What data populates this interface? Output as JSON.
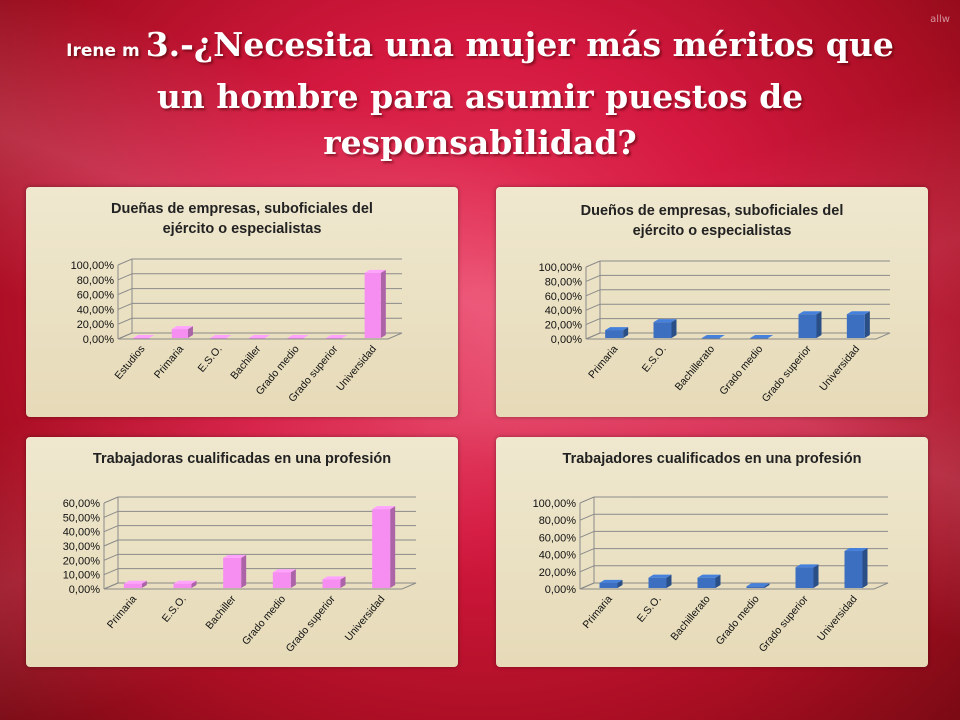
{
  "watermark": "allw",
  "header": {
    "author": "Irene m",
    "title": "3.-¿Necesita una mujer más méritos que un hombre para asumir puestos de responsabilidad?"
  },
  "chart_data": [
    {
      "type": "bar",
      "title": "Dueñas de empresas, suboficiales del ejército o especialistas",
      "title_lines": [
        "Dueñas de empresas, suboficiales del",
        "ejército o especialistas"
      ],
      "categories": [
        "Estudios",
        "Primaria",
        "E.S.O.",
        "Bachiller",
        "Grado medio",
        "Grado superior",
        "Universidad"
      ],
      "values": [
        0.0,
        12.0,
        0.0,
        0.0,
        0.0,
        0.0,
        88.0
      ],
      "ylim": [
        0,
        100
      ],
      "yticks": [
        "0,00%",
        "20,00%",
        "40,00%",
        "60,00%",
        "80,00%",
        "100,00%"
      ],
      "color": "#f58ef0",
      "grid": true,
      "legend": "none"
    },
    {
      "type": "bar",
      "title": "Dueños de empresas, suboficiales del ejército o especialistas",
      "title_lines": [
        "Dueños de empresas, suboficiales del",
        "ejército o especialistas"
      ],
      "categories": [
        "Primaria",
        "E.S.O.",
        "Bachillerato",
        "Grado medio",
        "Grado superior",
        "Universidad"
      ],
      "values": [
        11.0,
        22.0,
        0.0,
        0.0,
        33.0,
        33.0
      ],
      "ylim": [
        0,
        100
      ],
      "yticks": [
        "0,00%",
        "20,00%",
        "40,00%",
        "60,00%",
        "80,00%",
        "100,00%"
      ],
      "color": "#3c6fc0",
      "grid": true,
      "legend": "none"
    },
    {
      "type": "bar",
      "title": "Trabajadoras cualificadas en una profesión",
      "title_lines": [
        "Trabajadoras cualificadas en una profesión"
      ],
      "categories": [
        "Primaria",
        "E.S.O.",
        "Bachiller",
        "Grado medio",
        "Grado superior",
        "Universidad"
      ],
      "values": [
        3.0,
        3.0,
        21.0,
        11.0,
        6.0,
        55.0
      ],
      "ylim": [
        0,
        60
      ],
      "yticks": [
        "0,00%",
        "10,00%",
        "20,00%",
        "30,00%",
        "40,00%",
        "50,00%",
        "60,00%"
      ],
      "color": "#f58ef0",
      "grid": true,
      "legend": "none"
    },
    {
      "type": "bar",
      "title": "Trabajadores cualificados en una profesión",
      "title_lines": [
        "Trabajadores cualificados en una profesión"
      ],
      "categories": [
        "Primaria",
        "E.S.O.",
        "Bachillerato",
        "Grado medio",
        "Grado superior",
        "Universidad"
      ],
      "values": [
        6.0,
        12.0,
        12.0,
        2.0,
        24.0,
        43.0
      ],
      "ylim": [
        0,
        100
      ],
      "yticks": [
        "0,00%",
        "20,00%",
        "40,00%",
        "60,00%",
        "80,00%",
        "100,00%"
      ],
      "color": "#3c6fc0",
      "grid": true,
      "legend": "none"
    }
  ]
}
